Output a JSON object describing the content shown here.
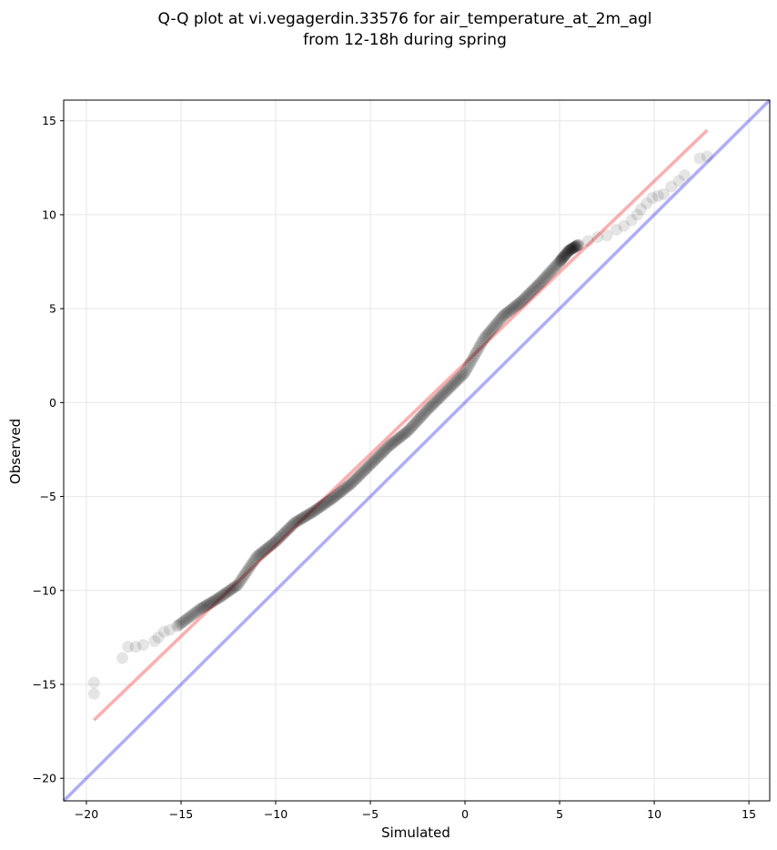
{
  "chart_data": {
    "type": "scatter",
    "title": [
      "Q-Q plot at vi.vegagerdin.33576 for air_temperature_at_2m_agl",
      "from 12-18h during spring"
    ],
    "xlabel": "Simulated",
    "ylabel": "Observed",
    "xlim": [
      -21.2,
      16.1
    ],
    "ylim": [
      -21.2,
      16.1
    ],
    "xticks": [
      -20,
      -15,
      -10,
      -5,
      0,
      5,
      10,
      15
    ],
    "yticks": [
      -20,
      -15,
      -10,
      -5,
      0,
      5,
      10,
      15
    ],
    "xtick_labels": [
      "−20",
      "−15",
      "−10",
      "−5",
      "0",
      "5",
      "10",
      "15"
    ],
    "ytick_labels": [
      "−20",
      "−15",
      "−10",
      "−5",
      "0",
      "5",
      "10",
      "15"
    ],
    "grid": true,
    "colors": {
      "points": "#000000",
      "fit_line": "#ff3333",
      "identity_line": "#3333ff",
      "grid": "#e6e6e6"
    },
    "fit_line": {
      "x": [
        -19.6,
        12.8
      ],
      "y": [
        -16.9,
        14.5
      ]
    },
    "identity_line": {
      "x": [
        -21.2,
        16.1
      ],
      "y": [
        -21.2,
        16.1
      ]
    },
    "quantile_curve": {
      "x": [
        -15.2,
        -14.0,
        -13.0,
        -12.0,
        -11.0,
        -10.0,
        -9.0,
        -8.0,
        -7.0,
        -6.0,
        -5.0,
        -4.0,
        -3.0,
        -2.0,
        -1.0,
        0.0,
        1.0,
        2.0,
        3.0,
        4.0,
        5.0,
        5.5,
        6.0
      ],
      "y": [
        -11.9,
        -11.0,
        -10.4,
        -9.7,
        -8.2,
        -7.4,
        -6.4,
        -5.8,
        -5.1,
        -4.3,
        -3.3,
        -2.3,
        -1.5,
        -0.4,
        0.6,
        1.6,
        3.4,
        4.6,
        5.4,
        6.4,
        7.5,
        8.1,
        8.4
      ]
    },
    "tail_points": [
      {
        "x": -19.6,
        "y": -15.5
      },
      {
        "x": -19.6,
        "y": -14.9
      },
      {
        "x": -18.1,
        "y": -13.6
      },
      {
        "x": -17.8,
        "y": -13.0
      },
      {
        "x": -17.4,
        "y": -13.0
      },
      {
        "x": -17.0,
        "y": -12.9
      },
      {
        "x": -16.4,
        "y": -12.7
      },
      {
        "x": -16.2,
        "y": -12.5
      },
      {
        "x": -15.9,
        "y": -12.2
      },
      {
        "x": -15.6,
        "y": -12.1
      },
      {
        "x": 6.5,
        "y": 8.6
      },
      {
        "x": 7.0,
        "y": 8.8
      },
      {
        "x": 7.5,
        "y": 8.9
      },
      {
        "x": 8.0,
        "y": 9.2
      },
      {
        "x": 8.4,
        "y": 9.4
      },
      {
        "x": 8.8,
        "y": 9.7
      },
      {
        "x": 9.1,
        "y": 10.0
      },
      {
        "x": 9.3,
        "y": 10.3
      },
      {
        "x": 9.6,
        "y": 10.6
      },
      {
        "x": 9.9,
        "y": 10.9
      },
      {
        "x": 10.2,
        "y": 11.0
      },
      {
        "x": 10.5,
        "y": 11.1
      },
      {
        "x": 10.9,
        "y": 11.5
      },
      {
        "x": 11.3,
        "y": 11.8
      },
      {
        "x": 11.6,
        "y": 12.1
      },
      {
        "x": 12.4,
        "y": 13.0
      },
      {
        "x": 12.8,
        "y": 13.1
      }
    ]
  }
}
